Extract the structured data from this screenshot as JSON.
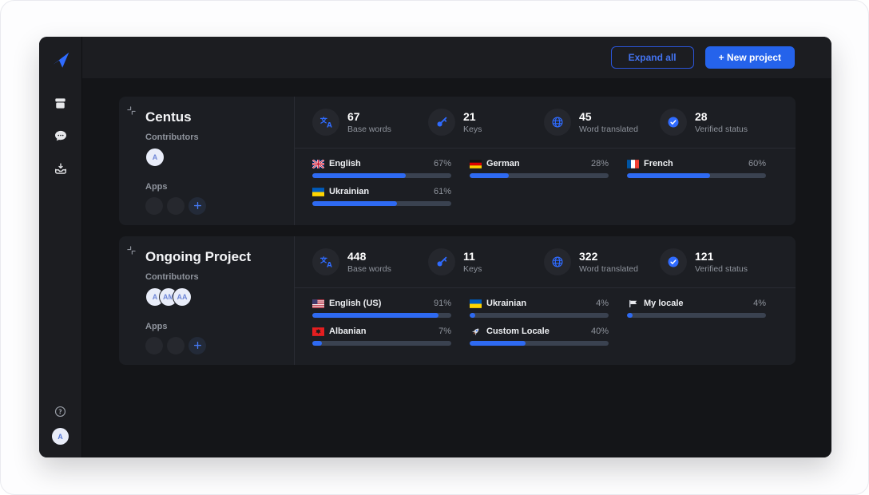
{
  "header": {
    "expand_all": "Expand all",
    "new_project": "+ New project"
  },
  "sidebar": {
    "nav": [
      {
        "icon": "box",
        "name": "projects"
      },
      {
        "icon": "chat",
        "name": "comments"
      },
      {
        "icon": "inbox",
        "name": "downloads"
      }
    ],
    "user_initial": "A"
  },
  "projects": [
    {
      "name": "Centus",
      "contributors_label": "Contributors",
      "contributors": [
        "A"
      ],
      "apps_label": "Apps",
      "stats": [
        {
          "icon": "translate",
          "value": "67",
          "label": "Base words"
        },
        {
          "icon": "key",
          "value": "21",
          "label": "Keys"
        },
        {
          "icon": "globe",
          "value": "45",
          "label": "Word translated"
        },
        {
          "icon": "check",
          "value": "28",
          "label": "Verified status"
        }
      ],
      "languages": [
        {
          "flag": "flag-gb",
          "name": "English",
          "percent": 67
        },
        {
          "flag": "flag-de",
          "name": "German",
          "percent": 28
        },
        {
          "flag": "flag-fr",
          "name": "French",
          "percent": 60
        },
        {
          "flag": "flag-ua",
          "name": "Ukrainian",
          "percent": 61
        }
      ]
    },
    {
      "name": "Ongoing Project",
      "contributors_label": "Contributors",
      "contributors": [
        "A",
        "AM",
        "AA"
      ],
      "apps_label": "Apps",
      "stats": [
        {
          "icon": "translate",
          "value": "448",
          "label": "Base words"
        },
        {
          "icon": "key",
          "value": "11",
          "label": "Keys"
        },
        {
          "icon": "globe",
          "value": "322",
          "label": "Word translated"
        },
        {
          "icon": "check",
          "value": "121",
          "label": "Verified status"
        }
      ],
      "languages": [
        {
          "flag": "flag-us",
          "name": "English (US)",
          "percent": 91
        },
        {
          "flag": "flag-ua",
          "name": "Ukrainian",
          "percent": 4
        },
        {
          "flag": "flag-white",
          "name": "My locale",
          "percent": 4
        },
        {
          "flag": "flag-al",
          "name": "Albanian",
          "percent": 7
        },
        {
          "flag": "rocket",
          "name": "Custom Locale",
          "percent": 40
        }
      ]
    }
  ],
  "colors": {
    "accent": "#2e6af2",
    "track": "#3a4250",
    "card": "#1c1e23",
    "window": "#141518",
    "button": "#2563eb"
  }
}
